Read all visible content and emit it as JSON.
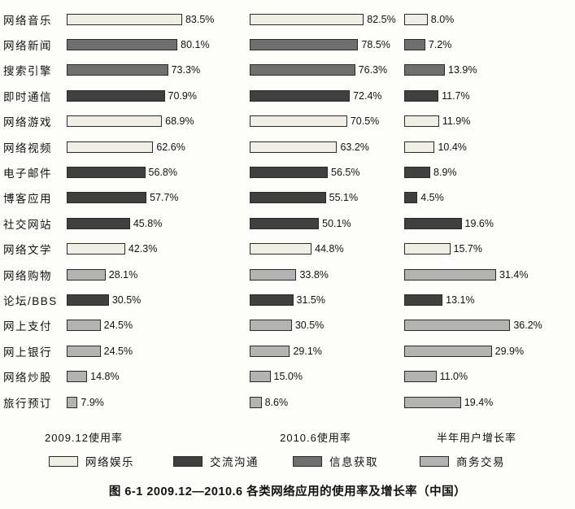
{
  "chart_data": {
    "type": "bar",
    "orientation": "horizontal",
    "title": "图 6-1  2009.12—2010.6 各类网络应用的使用率及增长率（中国）",
    "categories": [
      "网络音乐",
      "网络新闻",
      "搜索引擎",
      "即时通信",
      "网络游戏",
      "网络视频",
      "电子邮件",
      "博客应用",
      "社交网站",
      "网络文学",
      "网络购物",
      "论坛/BBS",
      "网上支付",
      "网上银行",
      "网络炒股",
      "旅行预订"
    ],
    "category_groups": [
      "entertainment",
      "information",
      "information",
      "communication",
      "entertainment",
      "entertainment",
      "communication",
      "communication",
      "communication",
      "entertainment",
      "business",
      "communication",
      "business",
      "business",
      "business",
      "business"
    ],
    "series": [
      {
        "name": "2009.12使用率",
        "axis_max": 100,
        "values": [
          83.5,
          80.1,
          73.3,
          70.9,
          68.9,
          62.6,
          56.8,
          57.7,
          45.8,
          42.3,
          28.1,
          30.5,
          24.5,
          24.5,
          14.8,
          7.9
        ]
      },
      {
        "name": "2010.6使用率",
        "axis_max": 100,
        "values": [
          82.5,
          78.5,
          76.3,
          72.4,
          70.5,
          63.2,
          56.5,
          55.1,
          50.1,
          44.8,
          33.8,
          31.5,
          30.5,
          29.1,
          15.0,
          8.6
        ]
      },
      {
        "name": "半年用户增长率",
        "axis_max": 40,
        "values": [
          8.0,
          7.2,
          13.9,
          11.7,
          11.9,
          10.4,
          8.9,
          4.5,
          19.6,
          15.7,
          31.4,
          13.1,
          36.2,
          29.9,
          11.0,
          19.4
        ]
      }
    ],
    "value_suffix": "%",
    "legend_position": "bottom",
    "grid": false,
    "legend": [
      {
        "key": "entertainment",
        "label": "网络娱乐",
        "color": "#f1eee5"
      },
      {
        "key": "communication",
        "label": "交流沟通",
        "color": "#404040"
      },
      {
        "key": "information",
        "label": "信息获取",
        "color": "#6f6f6f"
      },
      {
        "key": "business",
        "label": "商务交易",
        "color": "#b3b3b3"
      }
    ]
  }
}
